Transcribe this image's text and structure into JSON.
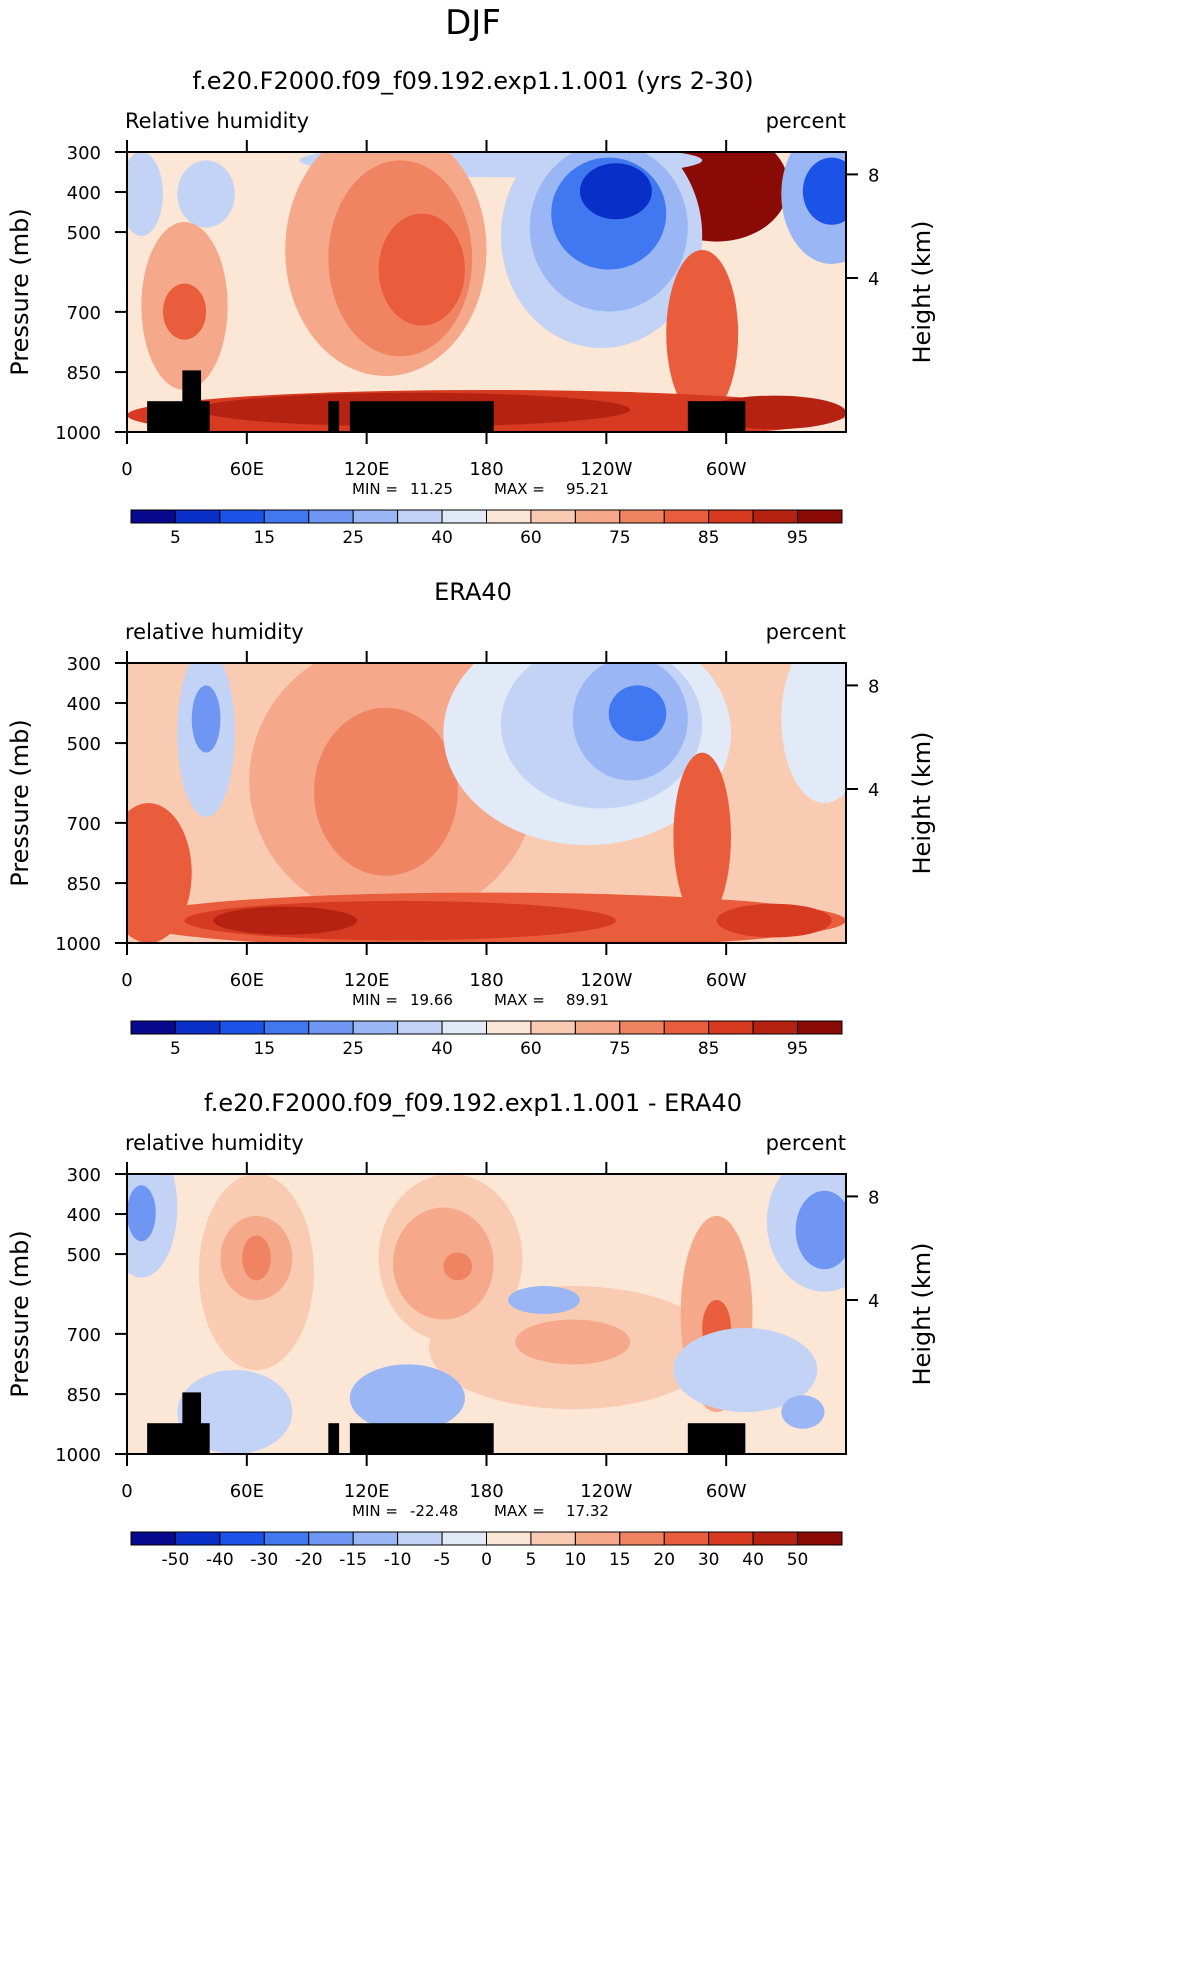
{
  "figure": {
    "season": "DJF"
  },
  "chart_data": [
    {
      "type": "heatmap",
      "title": "f.e20.F2000.f09_f09.192.exp1.1.001 (yrs 2-30)",
      "left_label": "Relative humidity",
      "right_label": "percent",
      "ylabel": "Pressure (mb)",
      "y2label": "Height (km)",
      "x_ticks": [
        "0",
        "60E",
        "120E",
        "180",
        "120W",
        "60W"
      ],
      "y_ticks": [
        "300",
        "400",
        "500",
        "700",
        "850",
        "1000"
      ],
      "y2_ticks": [
        "8",
        "4"
      ],
      "min_label": "MIN =",
      "min_value": "11.25",
      "max_label": "MAX =",
      "max_value": "95.21",
      "colorbar_labels": [
        "5",
        "15",
        "25",
        "40",
        "60",
        "75",
        "85",
        "95"
      ],
      "colors": [
        "#08088c",
        "#0a2fc8",
        "#1b52e8",
        "#3f78f0",
        "#6e96f2",
        "#9ab6f4",
        "#c2d3f6",
        "#e2eaf8",
        "#fce7d6",
        "#f9cbb2",
        "#f5a98a",
        "#f08462",
        "#e95c3c",
        "#d63a20",
        "#b62212",
        "#8a0b06"
      ]
    },
    {
      "type": "heatmap",
      "title": "ERA40",
      "left_label": "relative humidity",
      "right_label": "percent",
      "ylabel": "Pressure (mb)",
      "y2label": "Height (km)",
      "x_ticks": [
        "0",
        "60E",
        "120E",
        "180",
        "120W",
        "60W"
      ],
      "y_ticks": [
        "300",
        "400",
        "500",
        "700",
        "850",
        "1000"
      ],
      "y2_ticks": [
        "8",
        "4"
      ],
      "min_label": "MIN =",
      "min_value": "19.66",
      "max_label": "MAX =",
      "max_value": "89.91",
      "colorbar_labels": [
        "5",
        "15",
        "25",
        "40",
        "60",
        "75",
        "85",
        "95"
      ],
      "colors": [
        "#08088c",
        "#0a2fc8",
        "#1b52e8",
        "#3f78f0",
        "#6e96f2",
        "#9ab6f4",
        "#c2d3f6",
        "#e2eaf8",
        "#fce7d6",
        "#f9cbb2",
        "#f5a98a",
        "#f08462",
        "#e95c3c",
        "#d63a20",
        "#b62212",
        "#8a0b06"
      ]
    },
    {
      "type": "heatmap",
      "title": "f.e20.F2000.f09_f09.192.exp1.1.001 - ERA40",
      "left_label": "relative humidity",
      "right_label": "percent",
      "ylabel": "Pressure (mb)",
      "y2label": "Height (km)",
      "x_ticks": [
        "0",
        "60E",
        "120E",
        "180",
        "120W",
        "60W"
      ],
      "y_ticks": [
        "300",
        "400",
        "500",
        "700",
        "850",
        "1000"
      ],
      "y2_ticks": [
        "8",
        "4"
      ],
      "min_label": "MIN =",
      "min_value": "-22.48",
      "max_label": "MAX =",
      "max_value": "17.32",
      "colorbar_labels": [
        "-50",
        "-40",
        "-30",
        "-20",
        "-15",
        "-10",
        "-5",
        "0",
        "5",
        "10",
        "15",
        "20",
        "30",
        "40",
        "50"
      ],
      "colors": [
        "#08088c",
        "#0a2fc8",
        "#1b52e8",
        "#3f78f0",
        "#6e96f2",
        "#9ab6f4",
        "#c2d3f6",
        "#e2eaf8",
        "#fce7d6",
        "#f9cbb2",
        "#f5a98a",
        "#f08462",
        "#e95c3c",
        "#d63a20",
        "#b62212",
        "#8a0b06"
      ]
    }
  ]
}
